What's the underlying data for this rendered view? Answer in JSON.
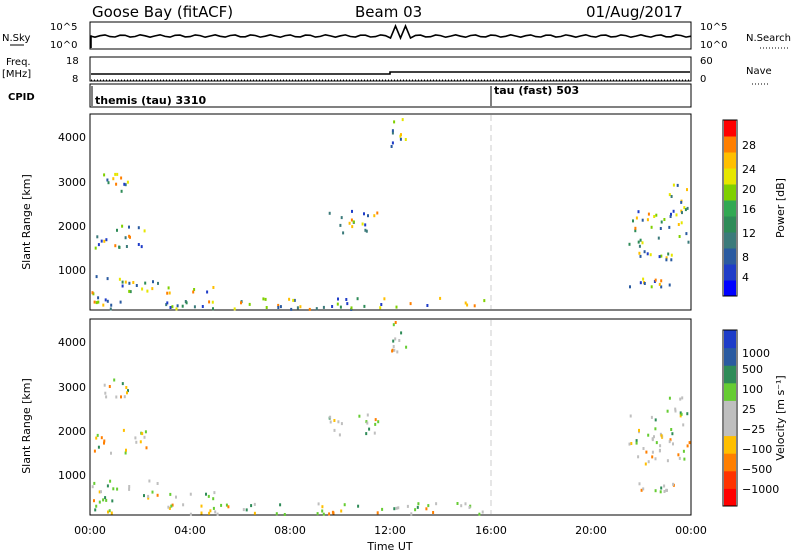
{
  "header": {
    "station": "Goose Bay (fitACF)",
    "beam": "Beam 03",
    "date": "01/Aug/2017"
  },
  "nsky_panel": {
    "left_label": "N.Sky",
    "left_ticks": [
      "10^5",
      "10^0"
    ],
    "right_label": "N.Search",
    "right_ticks": [
      "10^5",
      "10^0"
    ]
  },
  "freq_panel": {
    "left_label": "Freq.",
    "left_unit": "[MHz]",
    "left_ticks": [
      "18",
      "8"
    ],
    "right_label": "Nave",
    "right_ticks": [
      "60",
      "0"
    ]
  },
  "cpid_panel": {
    "label": "CPID",
    "modes": [
      {
        "name": "themis (tau) 3310",
        "start": "00:00"
      },
      {
        "name": "tau (fast) 503",
        "start": "16:00"
      }
    ]
  },
  "axes": {
    "x_ticks": [
      "00:00",
      "04:00",
      "08:00",
      "12:00",
      "16:00",
      "20:00",
      "00:00"
    ],
    "x_label": "Time UT",
    "y_ticks": [
      "1000",
      "2000",
      "3000",
      "4000"
    ],
    "y_label": "Slant Range [km]"
  },
  "colorbars": {
    "power": {
      "label": "Power [dB]",
      "ticks": [
        "28",
        "24",
        "20",
        "16",
        "12",
        "8",
        "4"
      ],
      "colors": [
        "#ff0000",
        "#ff7f00",
        "#ffbf00",
        "#e6e600",
        "#7fd000",
        "#32a852",
        "#2e8b57",
        "#3b7a7a",
        "#2a5aa0",
        "#1e3cc8",
        "#0000ff"
      ]
    },
    "velocity": {
      "label": "Velocity [m s⁻¹]",
      "ticks": [
        "1000",
        "500",
        "100",
        "25",
        "−25",
        "−100",
        "−500",
        "−1000"
      ],
      "colors": [
        "#1e3cc8",
        "#2a5aa0",
        "#2e8b57",
        "#66cc33",
        "#bfbfbf",
        "#bfbfbf",
        "#ffbf00",
        "#ff7f00",
        "#ff3300",
        "#ff0000"
      ]
    }
  },
  "chart_data": {
    "type": "heatmap",
    "x_range_hours": [
      0,
      24
    ],
    "y_range_km": [
      180,
      4500
    ],
    "echo_regions": [
      {
        "t0": 0.0,
        "t1": 1.2,
        "r0": 180,
        "r1": 600
      },
      {
        "t0": 0.0,
        "t1": 2.8,
        "r0": 700,
        "r1": 950
      },
      {
        "t0": 1.5,
        "t1": 5.0,
        "r0": 550,
        "r1": 700
      },
      {
        "t0": 0.0,
        "t1": 2.3,
        "r0": 1550,
        "r1": 2100
      },
      {
        "t0": 0.5,
        "t1": 1.5,
        "r0": 2800,
        "r1": 3200
      },
      {
        "t0": 3.0,
        "t1": 16.0,
        "r0": 180,
        "r1": 450
      },
      {
        "t0": 9.5,
        "t1": 11.5,
        "r0": 1900,
        "r1": 2450
      },
      {
        "t0": 12.0,
        "t1": 12.6,
        "r0": 3800,
        "r1": 4500
      },
      {
        "t0": 21.5,
        "t1": 23.3,
        "r0": 700,
        "r1": 900
      },
      {
        "t0": 21.5,
        "t1": 24.0,
        "r0": 1300,
        "r1": 2400
      },
      {
        "t0": 23.0,
        "t1": 24.0,
        "r0": 2400,
        "r1": 3000
      }
    ],
    "marker_time_hours": 16.0
  }
}
